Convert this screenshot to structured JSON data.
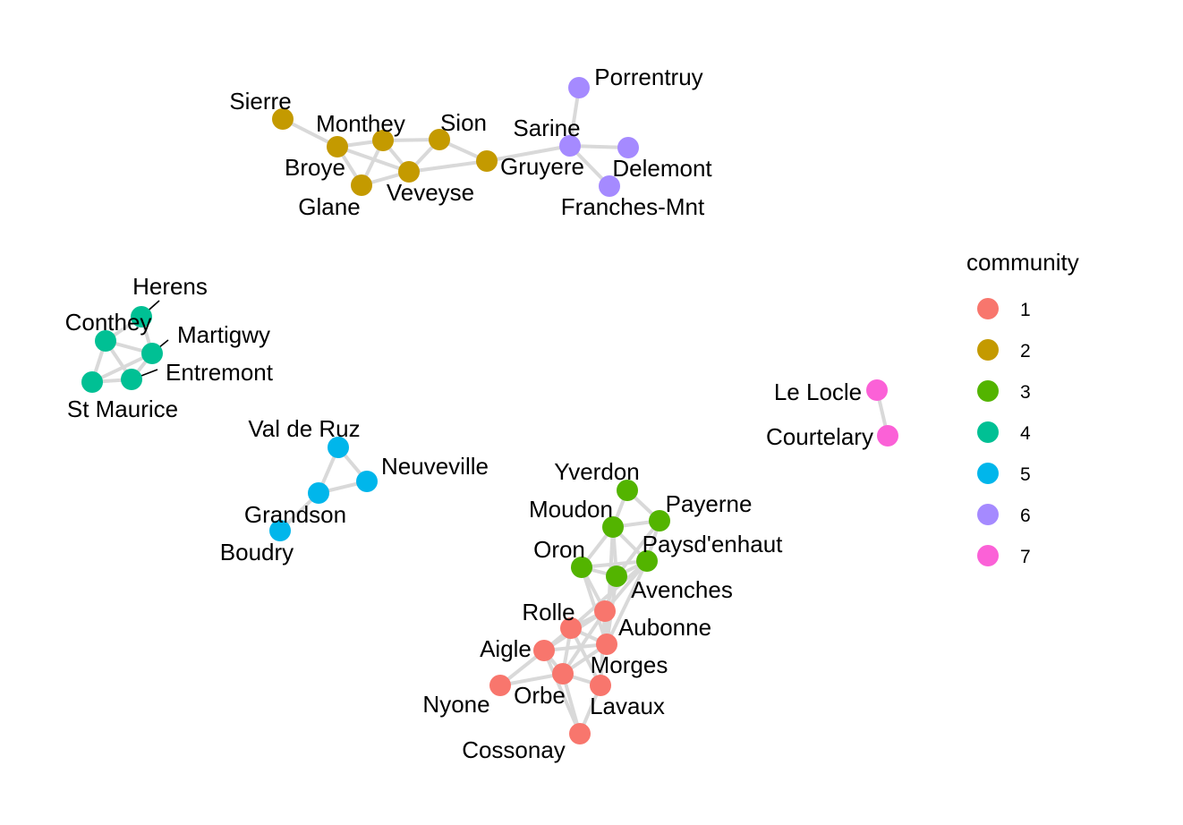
{
  "legend": {
    "title": "community",
    "items": [
      {
        "label": "1",
        "color": "#F8766D"
      },
      {
        "label": "2",
        "color": "#C49A00"
      },
      {
        "label": "3",
        "color": "#53B400"
      },
      {
        "label": "4",
        "color": "#00C094"
      },
      {
        "label": "5",
        "color": "#00B6EB"
      },
      {
        "label": "6",
        "color": "#A58AFF"
      },
      {
        "label": "7",
        "color": "#FB61D7"
      }
    ]
  },
  "edge_color": "#d9d9d9",
  "nodes": [
    {
      "id": "Sierre",
      "community": "2"
    },
    {
      "id": "Monthey",
      "community": "2"
    },
    {
      "id": "Broye",
      "community": "2"
    },
    {
      "id": "Glane",
      "community": "2"
    },
    {
      "id": "Veveyse",
      "community": "2"
    },
    {
      "id": "Sion",
      "community": "2"
    },
    {
      "id": "Gruyere",
      "community": "2"
    },
    {
      "id": "Porrentruy",
      "community": "6"
    },
    {
      "id": "Sarine",
      "community": "6"
    },
    {
      "id": "Delemont",
      "community": "6"
    },
    {
      "id": "Franches-Mnt",
      "community": "6"
    },
    {
      "id": "Herens",
      "community": "4"
    },
    {
      "id": "Conthey",
      "community": "4"
    },
    {
      "id": "Martigwy",
      "community": "4"
    },
    {
      "id": "Entremont",
      "community": "4"
    },
    {
      "id": "St Maurice",
      "community": "4"
    },
    {
      "id": "Val de Ruz",
      "community": "5"
    },
    {
      "id": "Neuveville",
      "community": "5"
    },
    {
      "id": "Grandson",
      "community": "5"
    },
    {
      "id": "Boudry",
      "community": "5"
    },
    {
      "id": "Le Locle",
      "community": "7"
    },
    {
      "id": "Courtelary",
      "community": "7"
    },
    {
      "id": "Yverdon",
      "community": "3"
    },
    {
      "id": "Moudon",
      "community": "3"
    },
    {
      "id": "Payerne",
      "community": "3"
    },
    {
      "id": "Oron",
      "community": "3"
    },
    {
      "id": "Paysd'enhaut",
      "community": "3"
    },
    {
      "id": "Avenches",
      "community": "3"
    },
    {
      "id": "Rolle",
      "community": "1"
    },
    {
      "id": "Aubonne",
      "community": "1"
    },
    {
      "id": "Aigle",
      "community": "1"
    },
    {
      "id": "Morges",
      "community": "1"
    },
    {
      "id": "Orbe",
      "community": "1"
    },
    {
      "id": "Nyone",
      "community": "1"
    },
    {
      "id": "Lavaux",
      "community": "1"
    },
    {
      "id": "Cossonay",
      "community": "1"
    }
  ],
  "edges": [
    [
      "Sierre",
      "Broye"
    ],
    [
      "Broye",
      "Monthey"
    ],
    [
      "Broye",
      "Glane"
    ],
    [
      "Broye",
      "Veveyse"
    ],
    [
      "Monthey",
      "Glane"
    ],
    [
      "Monthey",
      "Veveyse"
    ],
    [
      "Monthey",
      "Sion"
    ],
    [
      "Glane",
      "Veveyse"
    ],
    [
      "Veveyse",
      "Sion"
    ],
    [
      "Veveyse",
      "Gruyere"
    ],
    [
      "Sion",
      "Gruyere"
    ],
    [
      "Gruyere",
      "Sarine"
    ],
    [
      "Sarine",
      "Porrentruy"
    ],
    [
      "Sarine",
      "Delemont"
    ],
    [
      "Sarine",
      "Franches-Mnt"
    ],
    [
      "Herens",
      "Conthey"
    ],
    [
      "Herens",
      "Martigwy"
    ],
    [
      "Conthey",
      "Martigwy"
    ],
    [
      "Conthey",
      "Entremont"
    ],
    [
      "Conthey",
      "St Maurice"
    ],
    [
      "Martigwy",
      "Entremont"
    ],
    [
      "Martigwy",
      "St Maurice"
    ],
    [
      "Entremont",
      "St Maurice"
    ],
    [
      "Val de Ruz",
      "Neuveville"
    ],
    [
      "Val de Ruz",
      "Grandson"
    ],
    [
      "Neuveville",
      "Grandson"
    ],
    [
      "Grandson",
      "Boudry"
    ],
    [
      "Le Locle",
      "Courtelary"
    ],
    [
      "Yverdon",
      "Moudon"
    ],
    [
      "Yverdon",
      "Payerne"
    ],
    [
      "Moudon",
      "Payerne"
    ],
    [
      "Moudon",
      "Oron"
    ],
    [
      "Moudon",
      "Avenches"
    ],
    [
      "Moudon",
      "Paysd'enhaut"
    ],
    [
      "Payerne",
      "Paysd'enhaut"
    ],
    [
      "Payerne",
      "Avenches"
    ],
    [
      "Oron",
      "Avenches"
    ],
    [
      "Oron",
      "Paysd'enhaut"
    ],
    [
      "Avenches",
      "Paysd'enhaut"
    ],
    [
      "Oron",
      "Rolle"
    ],
    [
      "Oron",
      "Aubonne"
    ],
    [
      "Avenches",
      "Rolle"
    ],
    [
      "Avenches",
      "Aubonne"
    ],
    [
      "Paysd'enhaut",
      "Rolle"
    ],
    [
      "Paysd'enhaut",
      "Aubonne"
    ],
    [
      "Paysd'enhaut",
      "Morges"
    ],
    [
      "Moudon",
      "Aubonne"
    ],
    [
      "Rolle",
      "Aubonne"
    ],
    [
      "Rolle",
      "Aigle"
    ],
    [
      "Rolle",
      "Orbe"
    ],
    [
      "Rolle",
      "Morges"
    ],
    [
      "Rolle",
      "Lavaux"
    ],
    [
      "Aubonne",
      "Aigle"
    ],
    [
      "Aubonne",
      "Orbe"
    ],
    [
      "Aubonne",
      "Morges"
    ],
    [
      "Aigle",
      "Orbe"
    ],
    [
      "Aigle",
      "Nyone"
    ],
    [
      "Aigle",
      "Morges"
    ],
    [
      "Aigle",
      "Cossonay"
    ],
    [
      "Orbe",
      "Nyone"
    ],
    [
      "Orbe",
      "Morges"
    ],
    [
      "Orbe",
      "Lavaux"
    ],
    [
      "Morges",
      "Lavaux"
    ],
    [
      "Lavaux",
      "Cossonay"
    ],
    [
      "Orbe",
      "Cossonay"
    ]
  ]
}
